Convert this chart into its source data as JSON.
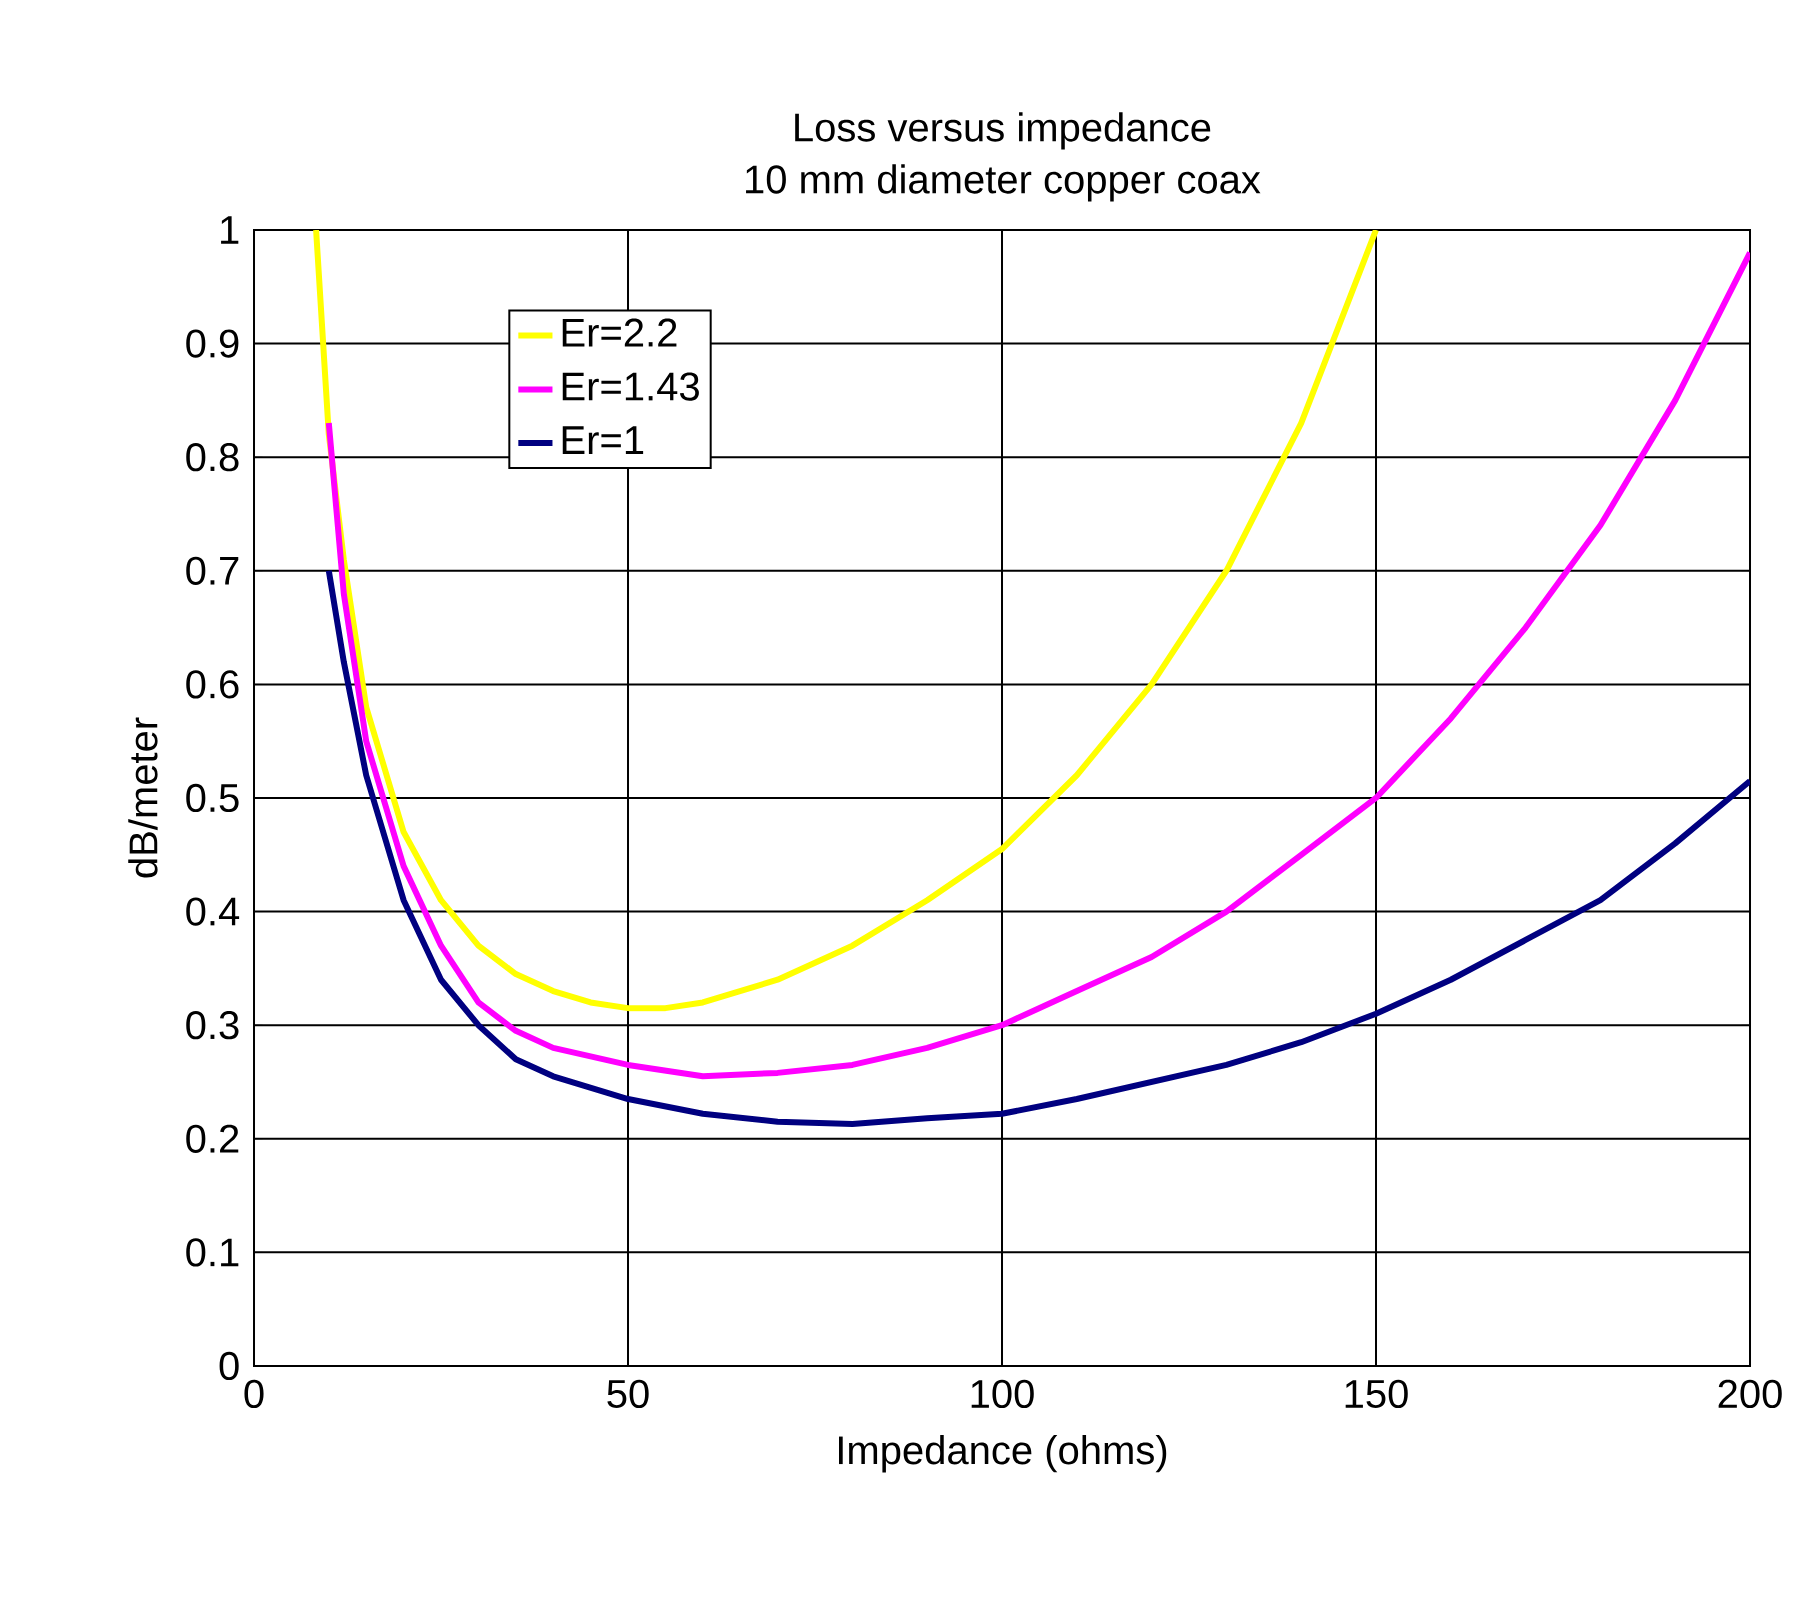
{
  "chart_data": {
    "type": "line",
    "title": "Loss versus impedance\n10 mm diameter copper coax",
    "xlabel": "Impedance (ohms)",
    "ylabel": "dB/meter",
    "xlim": [
      0,
      200
    ],
    "ylim": [
      0,
      1
    ],
    "xticks": [
      0,
      50,
      100,
      150,
      200
    ],
    "yticks": [
      0,
      0.1,
      0.2,
      0.3,
      0.4,
      0.5,
      0.6,
      0.7,
      0.8,
      0.9,
      1
    ],
    "grid": true,
    "legend": "top left",
    "marker": "none",
    "line_style": "solid",
    "series": [
      {
        "name": "Er=2.2",
        "color": "#ffff00",
        "x": [
          8.3,
          10,
          12,
          15,
          20,
          25,
          30,
          35,
          40,
          45,
          50,
          55,
          60,
          70,
          80,
          90,
          100,
          110,
          120,
          130,
          140,
          150
        ],
        "values": [
          1.0,
          0.82,
          0.71,
          0.58,
          0.47,
          0.41,
          0.37,
          0.345,
          0.33,
          0.32,
          0.315,
          0.315,
          0.32,
          0.34,
          0.37,
          0.41,
          0.455,
          0.52,
          0.6,
          0.7,
          0.83,
          1.0
        ]
      },
      {
        "name": "Er=1.43",
        "color": "#ff00ff",
        "x": [
          10,
          12,
          15,
          20,
          25,
          30,
          35,
          40,
          50,
          60,
          70,
          80,
          90,
          100,
          110,
          120,
          130,
          140,
          150,
          160,
          170,
          180,
          190,
          200
        ],
        "values": [
          0.83,
          0.68,
          0.55,
          0.44,
          0.37,
          0.32,
          0.295,
          0.28,
          0.265,
          0.255,
          0.258,
          0.265,
          0.28,
          0.3,
          0.33,
          0.36,
          0.4,
          0.45,
          0.5,
          0.57,
          0.65,
          0.74,
          0.85,
          0.98
        ]
      },
      {
        "name": "Er=1",
        "color": "#000080",
        "x": [
          10,
          12,
          15,
          20,
          25,
          30,
          35,
          40,
          50,
          60,
          70,
          80,
          90,
          100,
          110,
          120,
          130,
          140,
          150,
          160,
          170,
          180,
          190,
          200
        ],
        "values": [
          0.7,
          0.62,
          0.52,
          0.41,
          0.34,
          0.3,
          0.27,
          0.255,
          0.235,
          0.222,
          0.215,
          0.213,
          0.218,
          0.222,
          0.235,
          0.25,
          0.265,
          0.285,
          0.31,
          0.34,
          0.375,
          0.41,
          0.46,
          0.515
        ]
      }
    ]
  }
}
